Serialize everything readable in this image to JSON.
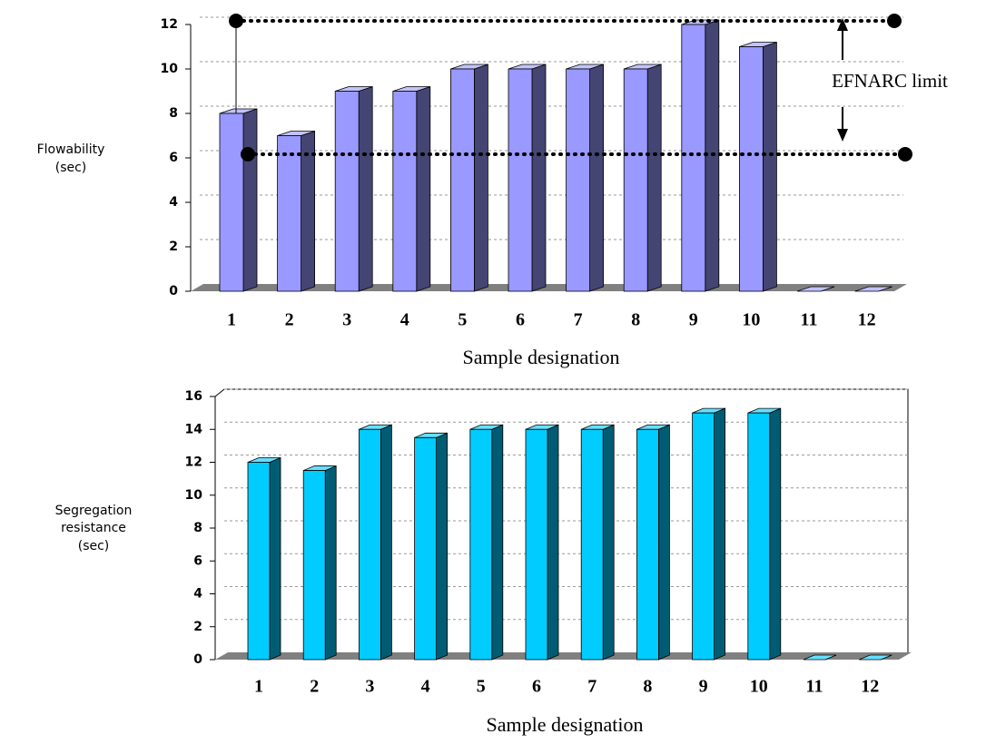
{
  "chart_data": [
    {
      "type": "bar3d",
      "ylabel": [
        "Flowability",
        "(sec)"
      ],
      "xlabel": "Sample designation",
      "categories": [
        "1",
        "2",
        "3",
        "4",
        "5",
        "6",
        "7",
        "8",
        "9",
        "10",
        "11",
        "12"
      ],
      "values": [
        8,
        7,
        9,
        9,
        10,
        10,
        10,
        10,
        12,
        11,
        0,
        0
      ],
      "color": "#9999ff",
      "ylim": [
        0,
        12
      ],
      "yticks": [
        0,
        2,
        4,
        6,
        8,
        10,
        12
      ],
      "grid": true,
      "limits": [
        6,
        12
      ],
      "annotation": "EFNARC  limit"
    },
    {
      "type": "bar3d",
      "ylabel": [
        "Segregation",
        "resistance",
        "(sec)"
      ],
      "xlabel": "Sample designation",
      "categories": [
        "1",
        "2",
        "3",
        "4",
        "5",
        "6",
        "7",
        "8",
        "9",
        "10",
        "11",
        "12"
      ],
      "values": [
        12,
        11.5,
        14,
        13.5,
        14,
        14,
        14,
        14,
        15,
        15,
        0,
        0
      ],
      "color": "#00ccff",
      "ylim": [
        0,
        16
      ],
      "yticks": [
        0,
        2,
        4,
        6,
        8,
        10,
        12,
        14,
        16
      ],
      "grid": true
    }
  ]
}
